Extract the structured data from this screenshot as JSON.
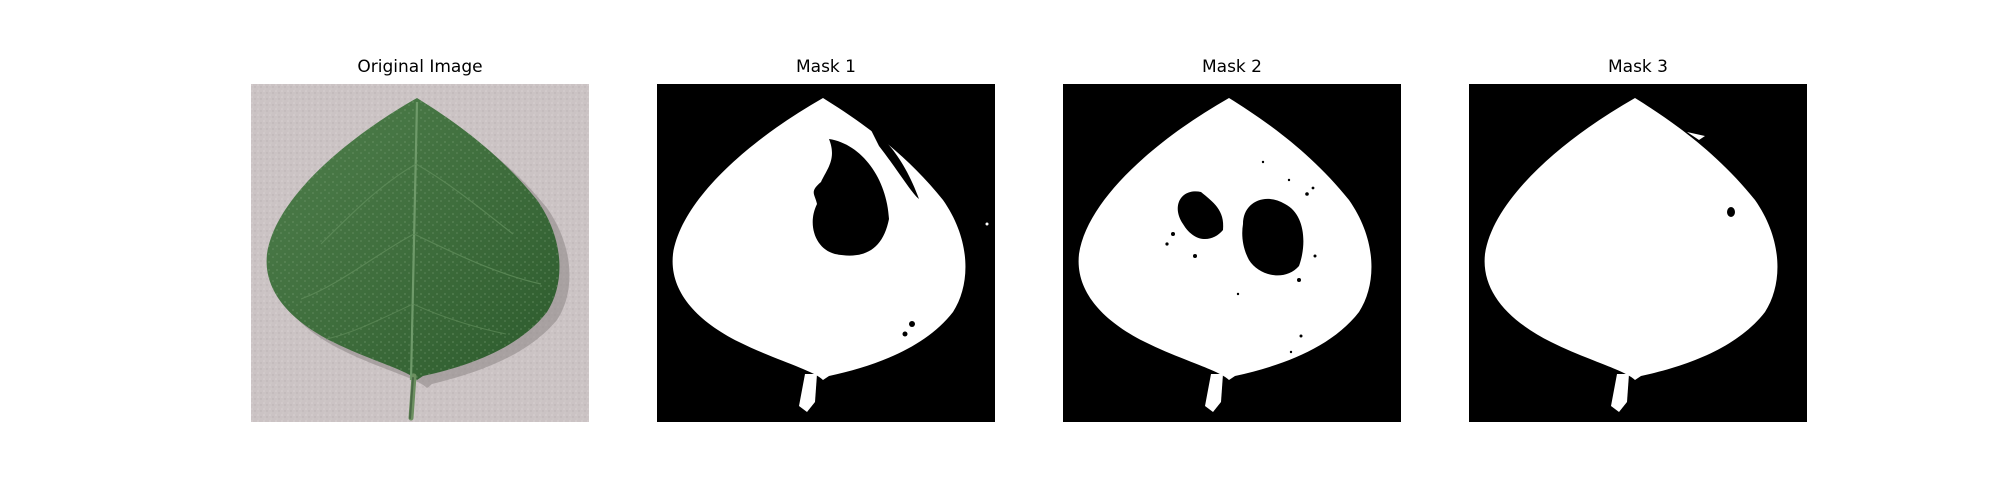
{
  "figure": {
    "panels": [
      {
        "title": "Original Image"
      },
      {
        "title": "Mask 1"
      },
      {
        "title": "Mask 2"
      },
      {
        "title": "Mask 3"
      }
    ]
  },
  "colors": {
    "background_photo": "#cbc3c4",
    "leaf_dark": "#2f5f2f",
    "leaf_light": "#6f9a6a",
    "mask_background": "#000000",
    "mask_foreground": "#ffffff"
  }
}
